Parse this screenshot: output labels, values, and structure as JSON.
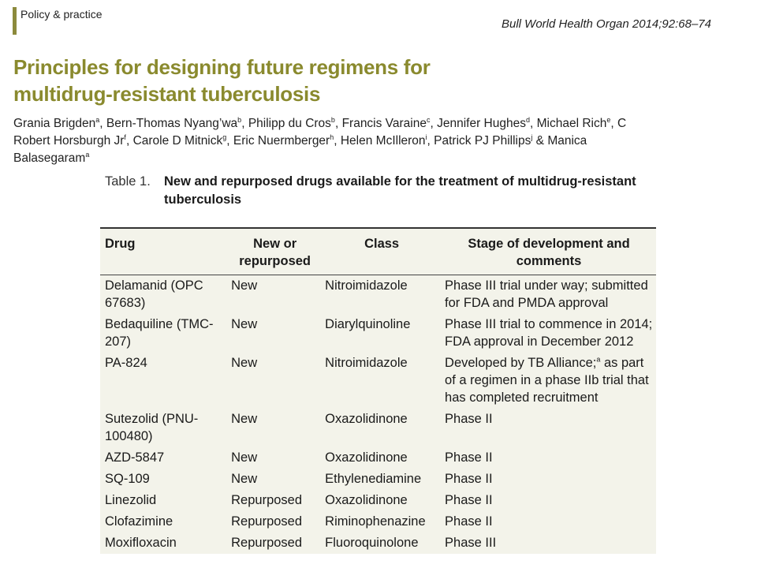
{
  "header": {
    "section": "Policy & practice",
    "citation": "Bull World Health Organ 2014;92:68–74"
  },
  "title": "Principles for designing future regimens for multidrug-resistant tuberculosis",
  "authors": [
    {
      "name": "Grania Brigden",
      "aff": "a"
    },
    {
      "name": "Bern-Thomas Nyang’wa",
      "aff": "b"
    },
    {
      "name": "Philipp du Cros",
      "aff": "b"
    },
    {
      "name": "Francis Varaine",
      "aff": "c"
    },
    {
      "name": "Jennifer Hughes",
      "aff": "d"
    },
    {
      "name": "Michael Rich",
      "aff": "e"
    },
    {
      "name": "C Robert Horsburgh Jr",
      "aff": "f"
    },
    {
      "name": "Carole D Mitnick",
      "aff": "g"
    },
    {
      "name": "Eric Nuermberger",
      "aff": "h"
    },
    {
      "name": "Helen McIlleron",
      "aff": "i"
    },
    {
      "name": "Patrick PJ Phillips",
      "aff": "j"
    },
    {
      "name": "Manica Balasegaram",
      "aff": "a"
    }
  ],
  "table": {
    "label": "Table 1.",
    "caption": "New and repurposed drugs available for the treatment of multidrug-resistant tuberculosis",
    "headers": {
      "drug": "Drug",
      "new_or_repurposed": "New or repurposed",
      "class": "Class",
      "stage": "Stage of development and comments"
    },
    "rows": [
      {
        "drug": "Delamanid (OPC 67683)",
        "status": "New",
        "class": "Nitroimidazole",
        "stage": "Phase III trial under way; submitted for FDA and PMDA approval"
      },
      {
        "drug": "Bedaquiline (TMC-207)",
        "status": "New",
        "class": "Diarylquinoline",
        "stage": "Phase III trial to commence in 2014; FDA approval in December 2012"
      },
      {
        "drug": "PA-824",
        "status": "New",
        "class": "Nitroimidazole",
        "stage": "Developed by TB Alliance; as part of a regimen in a phase IIb trial that has completed recruitment",
        "stage_sup": "a",
        "stage_sup_after": "Developed by TB Alliance;"
      },
      {
        "drug": "Sutezolid (PNU-100480)",
        "status": "New",
        "class": "Oxazolidinone",
        "stage": "Phase II"
      },
      {
        "drug": "AZD-5847",
        "status": "New",
        "class": "Oxazolidinone",
        "stage": "Phase II"
      },
      {
        "drug": "SQ-109",
        "status": "New",
        "class": "Ethylenediamine",
        "stage": "Phase II"
      },
      {
        "drug": "Linezolid",
        "status": "Repurposed",
        "class": "Oxazolidinone",
        "stage": "Phase II"
      },
      {
        "drug": "Clofazimine",
        "status": "Repurposed",
        "class": "Riminophenazine",
        "stage": "Phase II"
      },
      {
        "drug": "Moxifloxacin",
        "status": "Repurposed",
        "class": "Fluoroquinolone",
        "stage": "Phase III"
      }
    ]
  }
}
